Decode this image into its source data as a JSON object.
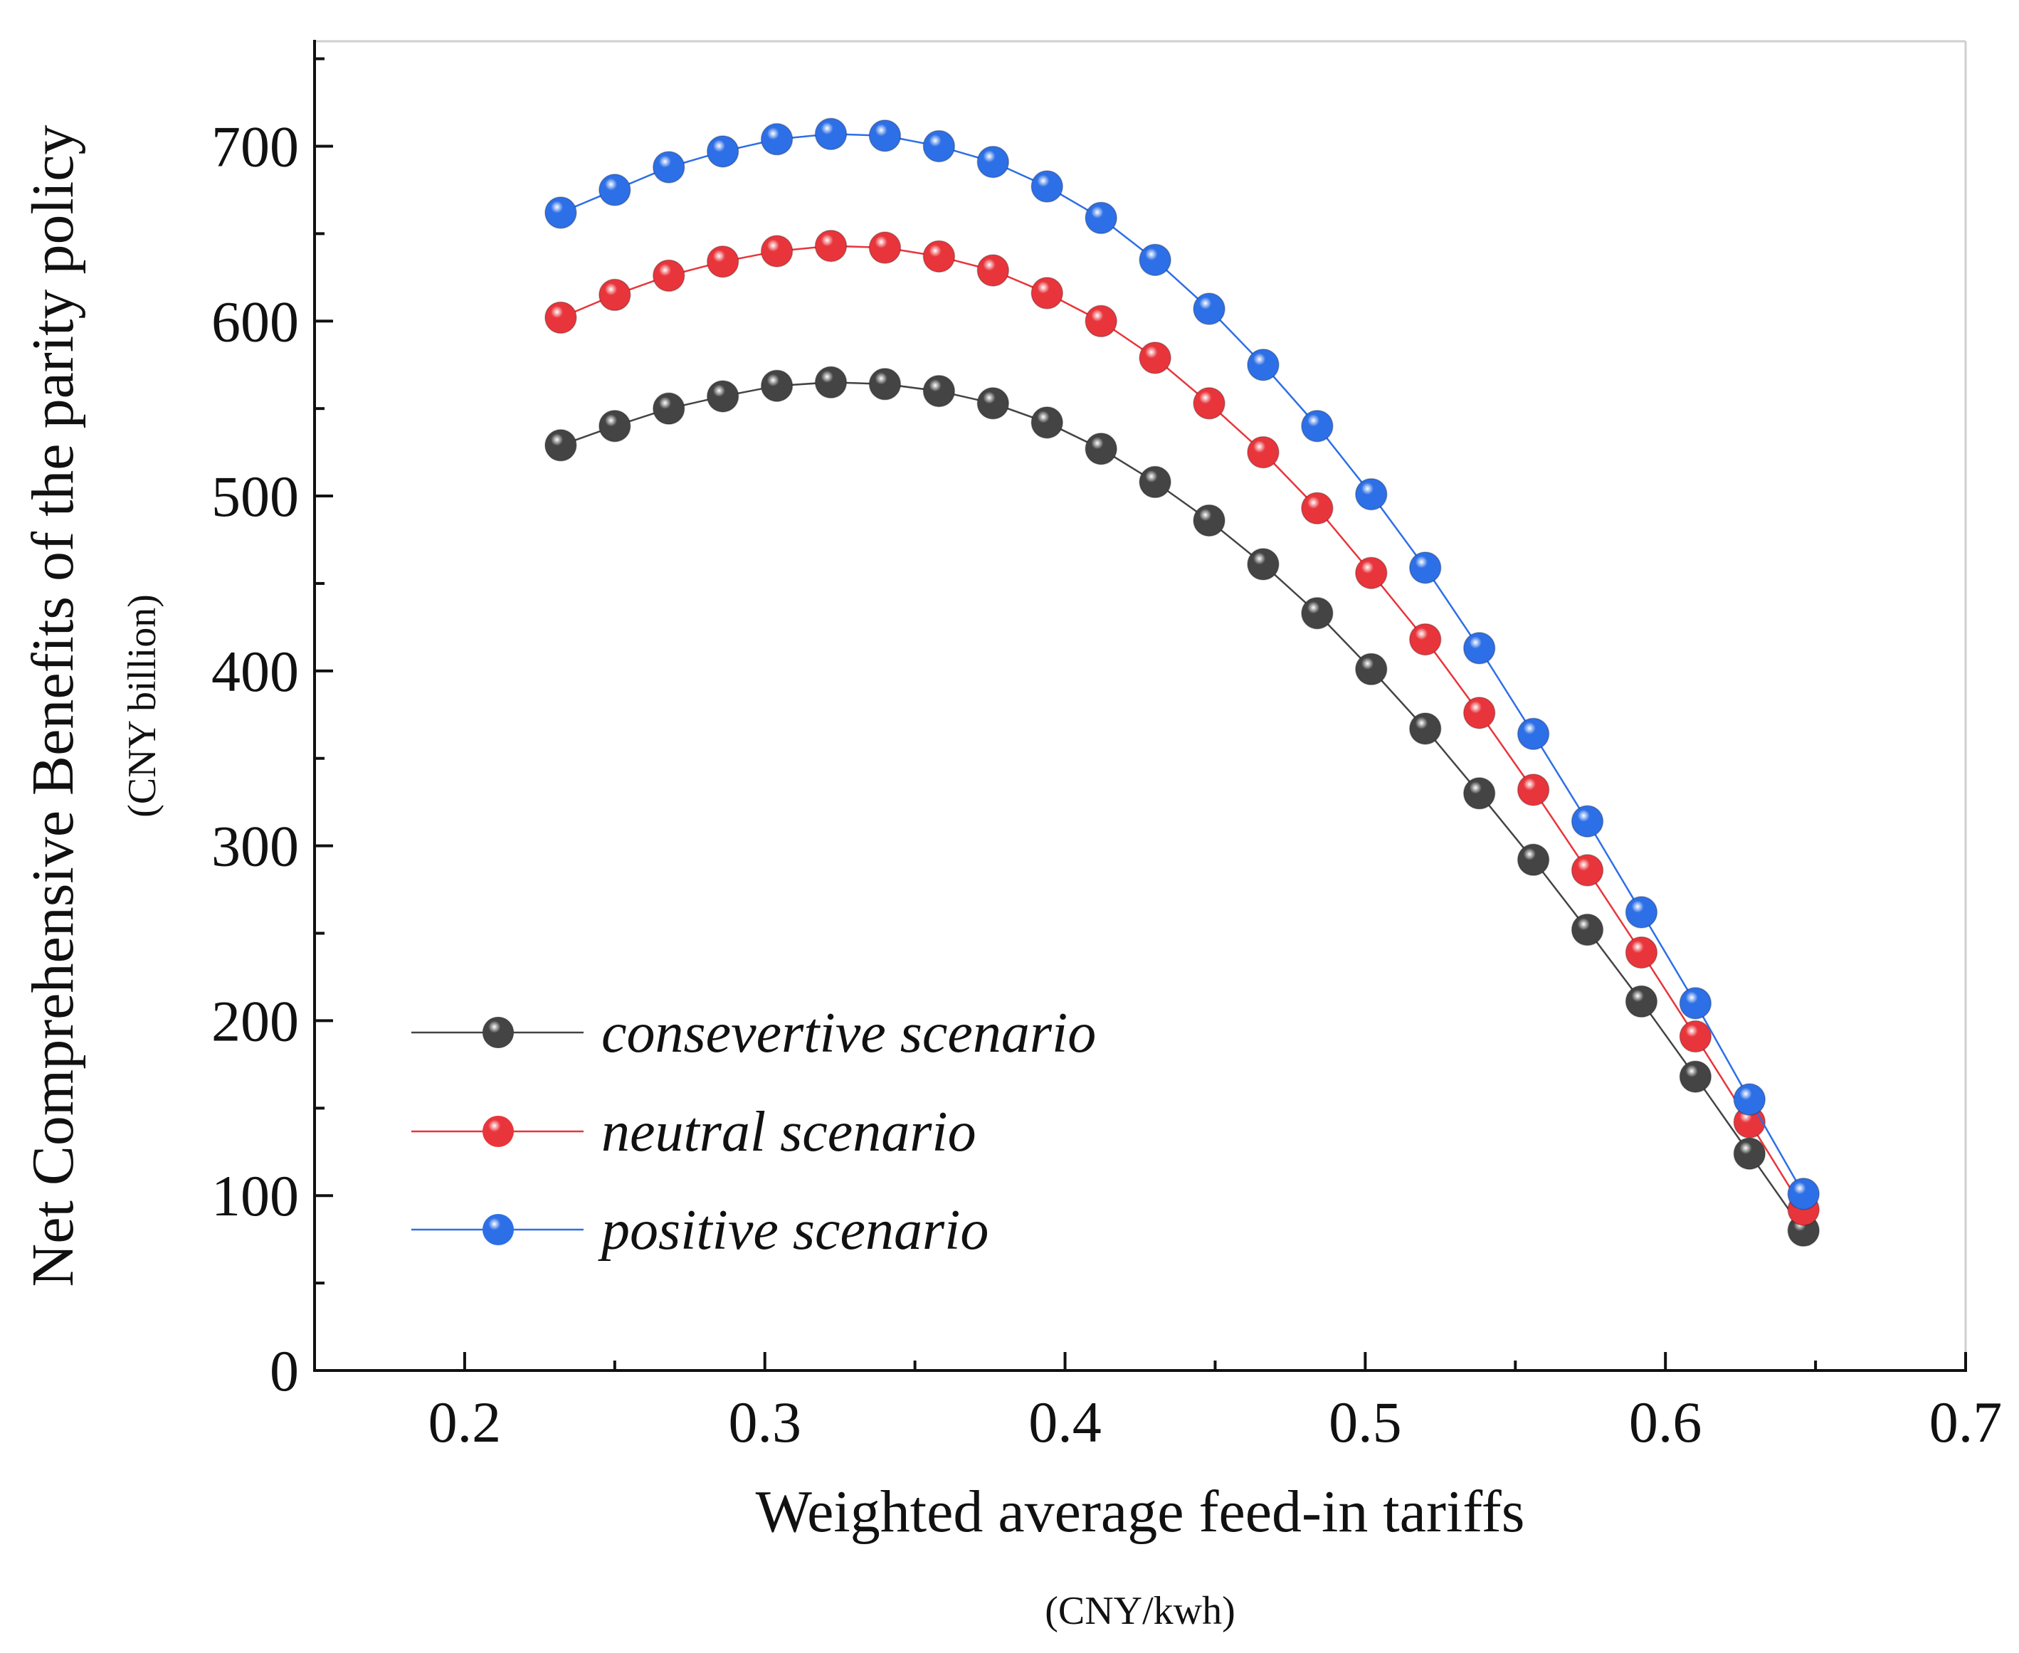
{
  "chart_data": {
    "type": "line",
    "title": "",
    "ylabel": "Net Comprehensive Benefits of the parity policy",
    "ylabel_unit": "(CNY billion)",
    "xlabel": "Weighted average feed-in tariffs",
    "xlabel_unit": "(CNY/kwh)",
    "xlim": [
      0.15,
      0.7
    ],
    "ylim": [
      0,
      760
    ],
    "xticks": [
      0.2,
      0.3,
      0.4,
      0.5,
      0.6,
      0.7
    ],
    "xtick_labels": [
      "0.2",
      "0.3",
      "0.4",
      "0.5",
      "0.6",
      "0.7"
    ],
    "yticks": [
      0,
      100,
      200,
      300,
      400,
      500,
      600,
      700
    ],
    "ytick_labels": [
      "0",
      "100",
      "200",
      "300",
      "400",
      "500",
      "600",
      "700"
    ],
    "legend_position": "lower-left",
    "x": [
      0.232,
      0.25,
      0.268,
      0.286,
      0.304,
      0.322,
      0.34,
      0.358,
      0.376,
      0.394,
      0.412,
      0.43,
      0.448,
      0.466,
      0.484,
      0.502,
      0.52,
      0.538,
      0.556,
      0.574,
      0.592,
      0.61,
      0.628,
      0.646
    ],
    "series": [
      {
        "name": "consevertive scenario",
        "color": "#444444",
        "values": [
          529,
          540,
          550,
          557,
          563,
          565,
          564,
          560,
          553,
          542,
          527,
          508,
          486,
          461,
          433,
          401,
          367,
          330,
          292,
          252,
          211,
          168,
          124,
          80
        ]
      },
      {
        "name": "neutral scenario",
        "color": "#e8353b",
        "values": [
          602,
          615,
          626,
          634,
          640,
          643,
          642,
          637,
          629,
          616,
          600,
          579,
          553,
          525,
          493,
          456,
          418,
          376,
          332,
          286,
          239,
          191,
          142,
          92
        ]
      },
      {
        "name": "positive scenario",
        "color": "#2d6fe6",
        "values": [
          662,
          675,
          688,
          697,
          704,
          707,
          706,
          700,
          691,
          677,
          659,
          635,
          607,
          575,
          540,
          501,
          459,
          413,
          364,
          314,
          262,
          210,
          155,
          101
        ]
      }
    ]
  }
}
